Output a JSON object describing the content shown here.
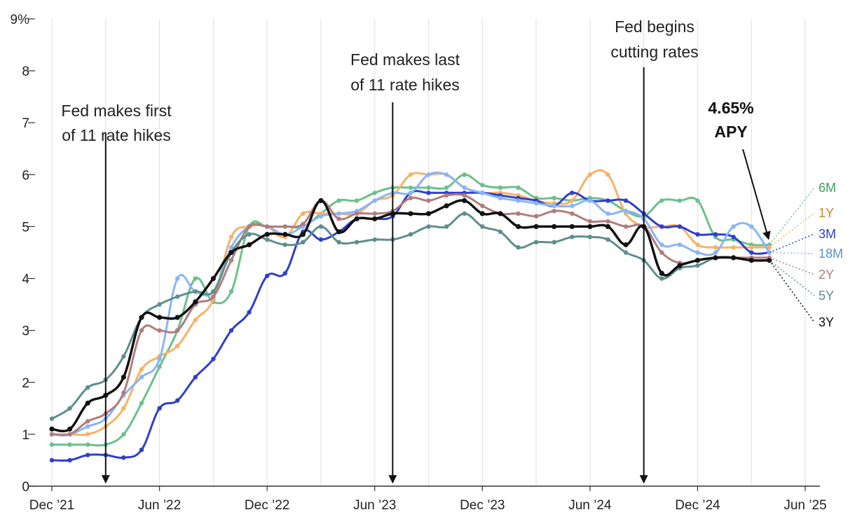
{
  "chart_data": {
    "type": "line",
    "title": "",
    "xlabel": "",
    "ylabel": "",
    "ylim": [
      0,
      9
    ],
    "xlim": [
      "2021-12",
      "2025-06"
    ],
    "y_ticks": [
      "0",
      "1",
      "2",
      "3",
      "4",
      "5",
      "6",
      "7",
      "8",
      "9%"
    ],
    "x_ticks": [
      {
        "date": "2021-12",
        "label": "Dec ’21"
      },
      {
        "date": "2022-06",
        "label": "Jun ’22"
      },
      {
        "date": "2022-12",
        "label": "Dec ’22"
      },
      {
        "date": "2023-06",
        "label": "Jun ’23"
      },
      {
        "date": "2023-12",
        "label": "Dec ’23"
      },
      {
        "date": "2024-06",
        "label": "Jun ’24"
      },
      {
        "date": "2024-12",
        "label": "Dec ’24"
      },
      {
        "date": "2025-06",
        "label": "Jun ’25"
      }
    ],
    "grid": "vertical",
    "x": [
      "2021-12",
      "2022-01",
      "2022-02",
      "2022-03",
      "2022-04",
      "2022-05",
      "2022-06",
      "2022-07",
      "2022-08",
      "2022-09",
      "2022-10",
      "2022-11",
      "2022-12",
      "2023-01",
      "2023-02",
      "2023-03",
      "2023-04",
      "2023-05",
      "2023-06",
      "2023-07",
      "2023-08",
      "2023-09",
      "2023-10",
      "2023-11",
      "2023-12",
      "2024-01",
      "2024-02",
      "2024-03",
      "2024-04",
      "2024-05",
      "2024-06",
      "2024-07",
      "2024-08",
      "2024-09",
      "2024-10",
      "2024-11",
      "2024-12",
      "2025-01",
      "2025-02",
      "2025-03",
      "2025-04"
    ],
    "series": [
      {
        "name": "6M",
        "color": "#6cc08b",
        "values": [
          0.8,
          0.8,
          0.8,
          0.8,
          1.0,
          1.6,
          2.3,
          3.0,
          4.0,
          3.55,
          3.75,
          5.0,
          5.0,
          5.0,
          5.0,
          5.25,
          5.5,
          5.5,
          5.65,
          5.75,
          5.75,
          5.75,
          5.75,
          6.0,
          5.8,
          5.75,
          5.75,
          5.55,
          5.55,
          5.5,
          5.55,
          5.5,
          5.3,
          5.2,
          5.5,
          5.5,
          5.5,
          4.8,
          4.75,
          4.65,
          4.65
        ]
      },
      {
        "name": "1Y",
        "color": "#f7b267",
        "values": [
          1.0,
          1.0,
          1.0,
          1.15,
          1.5,
          2.25,
          2.5,
          2.7,
          3.2,
          3.6,
          4.8,
          5.0,
          5.0,
          4.8,
          5.25,
          5.25,
          5.25,
          5.25,
          5.5,
          5.6,
          6.0,
          6.0,
          6.0,
          5.75,
          5.65,
          5.65,
          5.6,
          5.5,
          5.45,
          5.5,
          6.0,
          6.0,
          5.25,
          5.0,
          5.0,
          5.0,
          4.65,
          4.6,
          4.6,
          4.6,
          4.6
        ]
      },
      {
        "name": "3M",
        "color": "#2f3fc9",
        "values": [
          0.5,
          0.5,
          0.6,
          0.6,
          0.55,
          0.7,
          1.5,
          1.65,
          2.1,
          2.45,
          3.0,
          3.35,
          4.05,
          4.1,
          4.9,
          4.75,
          4.9,
          5.15,
          5.15,
          5.2,
          5.65,
          5.65,
          5.65,
          5.65,
          5.65,
          5.6,
          5.55,
          5.5,
          5.4,
          5.65,
          5.5,
          5.5,
          5.5,
          5.25,
          5.0,
          5.0,
          4.85,
          4.85,
          4.8,
          4.5,
          4.5
        ]
      },
      {
        "name": "18M",
        "color": "#8ab4f8",
        "values": [
          1.0,
          1.0,
          1.15,
          1.3,
          1.75,
          2.1,
          2.45,
          4.0,
          3.75,
          3.75,
          4.6,
          5.0,
          5.0,
          4.85,
          5.0,
          5.2,
          5.25,
          5.3,
          5.5,
          5.65,
          5.65,
          6.0,
          6.0,
          5.75,
          5.65,
          5.55,
          5.5,
          5.45,
          5.4,
          5.4,
          5.5,
          5.25,
          5.3,
          5.15,
          4.65,
          4.65,
          4.5,
          4.5,
          5.0,
          5.0,
          4.5
        ]
      },
      {
        "name": "2Y",
        "color": "#b07d7d",
        "values": [
          1.0,
          1.0,
          1.25,
          1.4,
          1.8,
          3.0,
          3.0,
          3.0,
          3.5,
          3.65,
          4.35,
          5.0,
          5.0,
          5.0,
          5.05,
          5.5,
          5.15,
          5.25,
          5.25,
          5.3,
          5.55,
          5.5,
          5.6,
          5.6,
          5.4,
          5.25,
          5.25,
          5.2,
          5.3,
          5.25,
          5.1,
          5.1,
          5.0,
          5.0,
          4.5,
          4.3,
          4.35,
          4.4,
          4.4,
          4.4,
          4.4
        ]
      },
      {
        "name": "5Y",
        "color": "#5e8e8e",
        "values": [
          1.3,
          1.5,
          1.9,
          2.05,
          2.5,
          3.25,
          3.5,
          3.65,
          3.75,
          3.75,
          4.5,
          4.85,
          4.75,
          4.65,
          4.7,
          5.0,
          4.7,
          4.7,
          4.75,
          4.75,
          4.85,
          5.0,
          5.0,
          5.25,
          5.0,
          4.9,
          4.6,
          4.7,
          4.7,
          4.8,
          4.8,
          4.75,
          4.5,
          4.35,
          4.0,
          4.2,
          4.25,
          4.4,
          4.4,
          4.35,
          4.35
        ]
      },
      {
        "name": "3Y",
        "color": "#111111",
        "values": [
          1.1,
          1.1,
          1.6,
          1.75,
          2.1,
          3.25,
          3.25,
          3.25,
          3.55,
          4.0,
          4.5,
          4.65,
          4.85,
          4.85,
          4.85,
          5.5,
          4.9,
          5.15,
          5.15,
          5.25,
          5.25,
          5.25,
          5.4,
          5.5,
          5.25,
          5.25,
          5.0,
          5.0,
          5.0,
          5.0,
          5.0,
          5.0,
          4.65,
          5.0,
          4.1,
          4.25,
          4.35,
          4.4,
          4.4,
          4.35,
          4.35
        ]
      }
    ],
    "annotations": [
      {
        "text": [
          "Fed makes first",
          "of 11 rate hikes"
        ],
        "date": "2022-03"
      },
      {
        "text": [
          "Fed makes last",
          "of 11 rate hikes"
        ],
        "date": "2023-07"
      },
      {
        "text": [
          "Fed begins",
          "cutting rates"
        ],
        "date": "2024-09"
      }
    ],
    "callout": {
      "text": [
        "4.65%",
        "APY"
      ],
      "date": "2025-04",
      "value": 4.65
    }
  }
}
